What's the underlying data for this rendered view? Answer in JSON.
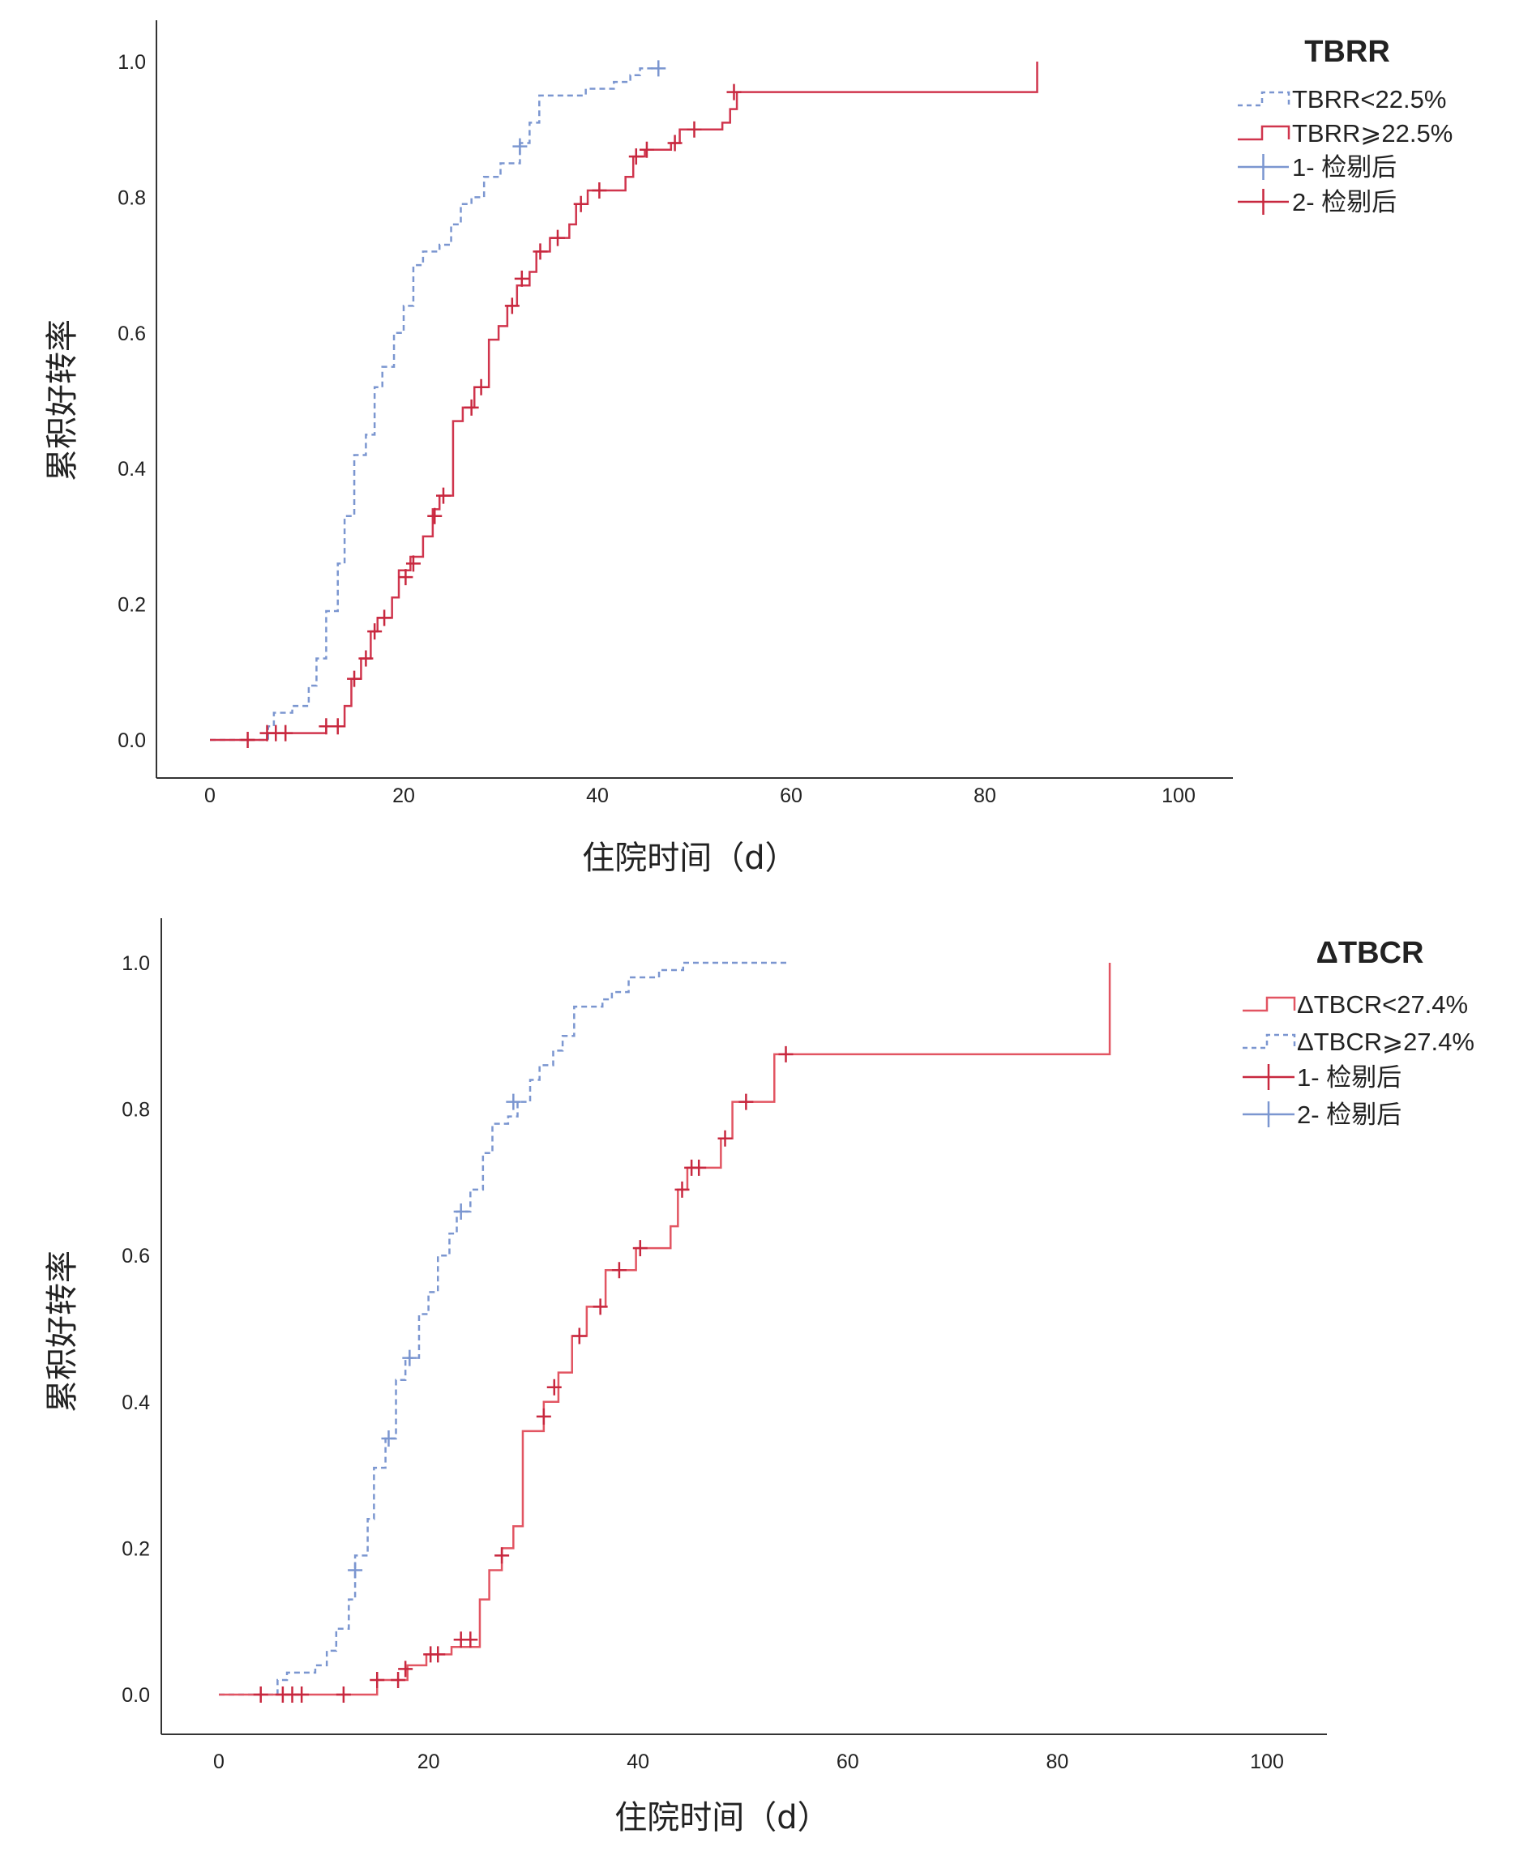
{
  "colors": {
    "blue": "#7b96d0",
    "red_top": "#d0354d",
    "red_bottom": "#e25562",
    "red_censor": "#c8283f",
    "axis": "#333333"
  },
  "chart_data": [
    {
      "type": "line",
      "subtype": "kaplan-meier-cumulative",
      "legend_title": "TBRR",
      "xlabel": "住院时间（d）",
      "ylabel": "累积好转率",
      "xlim": [
        0,
        100
      ],
      "ylim": [
        0,
        1.0
      ],
      "xticks": [
        "0",
        "20",
        "40",
        "60",
        "80",
        "100"
      ],
      "yticks": [
        "0.0",
        "0.2",
        "0.4",
        "0.6",
        "0.8",
        "1.0"
      ],
      "legend_position": "top-right",
      "legend": [
        {
          "label": "TBRR<22.5%",
          "style": "dashed-step",
          "color": "blue"
        },
        {
          "label": "TBRR⩾22.5%",
          "style": "solid-step",
          "color": "red"
        },
        {
          "label": "1- 检剔后",
          "style": "censor",
          "color": "blue"
        },
        {
          "label": "2- 检剔后",
          "style": "censor",
          "color": "red"
        }
      ],
      "series": [
        {
          "name": "TBRR<22.5%",
          "color": "blue",
          "dashed": true,
          "steps": [
            [
              0,
              0
            ],
            [
              6,
              0.02
            ],
            [
              6.6,
              0.04
            ],
            [
              8.5,
              0.05
            ],
            [
              10.2,
              0.08
            ],
            [
              11,
              0.12
            ],
            [
              12,
              0.19
            ],
            [
              13.2,
              0.26
            ],
            [
              13.9,
              0.33
            ],
            [
              14.9,
              0.42
            ],
            [
              16.1,
              0.45
            ],
            [
              17,
              0.52
            ],
            [
              17.8,
              0.55
            ],
            [
              19,
              0.6
            ],
            [
              20,
              0.64
            ],
            [
              21,
              0.7
            ],
            [
              22,
              0.72
            ],
            [
              23.7,
              0.73
            ],
            [
              24.9,
              0.76
            ],
            [
              25.9,
              0.79
            ],
            [
              27,
              0.8
            ],
            [
              28.3,
              0.83
            ],
            [
              30,
              0.85
            ],
            [
              32,
              0.88
            ],
            [
              33,
              0.91
            ],
            [
              34,
              0.95
            ],
            [
              38.8,
              0.96
            ],
            [
              41.7,
              0.97
            ],
            [
              43.4,
              0.98
            ],
            [
              44.4,
              0.99
            ]
          ],
          "end": 46.3,
          "censored": [
            [
              32,
              0.875
            ],
            [
              46.3,
              0.99
            ]
          ]
        },
        {
          "name": "TBRR⩾22.5%",
          "color": "red",
          "dashed": false,
          "steps": [
            [
              0,
              0
            ],
            [
              5.9,
              0.01
            ],
            [
              12,
              0.02
            ],
            [
              13.9,
              0.05
            ],
            [
              14.6,
              0.09
            ],
            [
              15.6,
              0.12
            ],
            [
              16.6,
              0.16
            ],
            [
              17.3,
              0.18
            ],
            [
              18.8,
              0.21
            ],
            [
              19.5,
              0.25
            ],
            [
              20.7,
              0.27
            ],
            [
              22,
              0.3
            ],
            [
              23,
              0.34
            ],
            [
              23.7,
              0.36
            ],
            [
              25.1,
              0.47
            ],
            [
              26.1,
              0.49
            ],
            [
              27.3,
              0.52
            ],
            [
              28.8,
              0.59
            ],
            [
              29.8,
              0.61
            ],
            [
              30.7,
              0.64
            ],
            [
              31.7,
              0.67
            ],
            [
              33,
              0.69
            ],
            [
              33.7,
              0.72
            ],
            [
              35.1,
              0.74
            ],
            [
              37.1,
              0.76
            ],
            [
              37.8,
              0.79
            ],
            [
              39,
              0.81
            ],
            [
              42.9,
              0.83
            ],
            [
              43.7,
              0.86
            ],
            [
              44.9,
              0.87
            ],
            [
              47.6,
              0.88
            ],
            [
              48.5,
              0.9
            ],
            [
              52.9,
              0.91
            ],
            [
              53.7,
              0.93
            ],
            [
              54.4,
              0.955
            ],
            [
              85.4,
              1.0
            ]
          ],
          "end": 85.4,
          "censored": [
            [
              3.9,
              0
            ],
            [
              5.9,
              0.01
            ],
            [
              6.8,
              0.01
            ],
            [
              7.8,
              0.01
            ],
            [
              12,
              0.02
            ],
            [
              13.2,
              0.02
            ],
            [
              14.9,
              0.09
            ],
            [
              16.1,
              0.12
            ],
            [
              17,
              0.16
            ],
            [
              18,
              0.18
            ],
            [
              20.2,
              0.24
            ],
            [
              21,
              0.26
            ],
            [
              23.2,
              0.33
            ],
            [
              24.1,
              0.36
            ],
            [
              27,
              0.49
            ],
            [
              28,
              0.52
            ],
            [
              31.2,
              0.64
            ],
            [
              32.2,
              0.68
            ],
            [
              34.1,
              0.72
            ],
            [
              35.9,
              0.74
            ],
            [
              38.3,
              0.79
            ],
            [
              40.2,
              0.81
            ],
            [
              44,
              0.86
            ],
            [
              45.1,
              0.87
            ],
            [
              48,
              0.88
            ],
            [
              50,
              0.9
            ],
            [
              54.1,
              0.955
            ]
          ]
        }
      ]
    },
    {
      "type": "line",
      "subtype": "kaplan-meier-cumulative",
      "legend_title": "ΔTBCR",
      "xlabel": "住院时间（d）",
      "ylabel": "累积好转率",
      "xlim": [
        0,
        100
      ],
      "ylim": [
        0,
        1.0
      ],
      "xticks": [
        "0",
        "20",
        "40",
        "60",
        "80",
        "100"
      ],
      "yticks": [
        "0.0",
        "0.2",
        "0.4",
        "0.6",
        "0.8",
        "1.0"
      ],
      "legend_position": "top-right",
      "legend": [
        {
          "label": "ΔTBCR<27.4%",
          "style": "solid-step",
          "color": "red"
        },
        {
          "label": "ΔTBCR⩾27.4%",
          "style": "dashed-step",
          "color": "blue"
        },
        {
          "label": "1- 检剔后",
          "style": "censor",
          "color": "red"
        },
        {
          "label": "2- 检剔后",
          "style": "censor",
          "color": "blue"
        }
      ],
      "series": [
        {
          "name": "ΔTBCR⩾27.4%",
          "color": "blue",
          "dashed": true,
          "steps": [
            [
              0,
              0
            ],
            [
              5.6,
              0.02
            ],
            [
              6.5,
              0.03
            ],
            [
              9.2,
              0.04
            ],
            [
              10.3,
              0.06
            ],
            [
              11.2,
              0.09
            ],
            [
              12.4,
              0.13
            ],
            [
              13,
              0.19
            ],
            [
              14.2,
              0.24
            ],
            [
              14.8,
              0.31
            ],
            [
              15.9,
              0.35
            ],
            [
              16.9,
              0.43
            ],
            [
              17.8,
              0.46
            ],
            [
              19.1,
              0.52
            ],
            [
              20,
              0.55
            ],
            [
              20.9,
              0.6
            ],
            [
              22,
              0.63
            ],
            [
              22.7,
              0.66
            ],
            [
              24,
              0.69
            ],
            [
              25.2,
              0.74
            ],
            [
              26.1,
              0.78
            ],
            [
              27.6,
              0.79
            ],
            [
              28.5,
              0.81
            ],
            [
              29.7,
              0.84
            ],
            [
              30.6,
              0.86
            ],
            [
              31.9,
              0.88
            ],
            [
              32.8,
              0.9
            ],
            [
              33.9,
              0.94
            ],
            [
              36.6,
              0.95
            ],
            [
              37.5,
              0.96
            ],
            [
              39.1,
              0.98
            ],
            [
              42,
              0.99
            ],
            [
              44.3,
              1.0
            ]
          ],
          "end": 54.2,
          "censored": [
            [
              13,
              0.17
            ],
            [
              16.2,
              0.35
            ],
            [
              18.2,
              0.46
            ],
            [
              23.1,
              0.66
            ],
            [
              28.1,
              0.81
            ]
          ]
        },
        {
          "name": "ΔTBCR<27.4%",
          "color": "red",
          "dashed": false,
          "steps": [
            [
              0,
              0
            ],
            [
              15.1,
              0.02
            ],
            [
              18,
              0.04
            ],
            [
              19.8,
              0.055
            ],
            [
              22.2,
              0.065
            ],
            [
              24.9,
              0.13
            ],
            [
              25.8,
              0.17
            ],
            [
              27,
              0.2
            ],
            [
              28.1,
              0.23
            ],
            [
              29,
              0.36
            ],
            [
              31,
              0.4
            ],
            [
              32.4,
              0.44
            ],
            [
              33.7,
              0.49
            ],
            [
              35.1,
              0.53
            ],
            [
              36.9,
              0.58
            ],
            [
              39.8,
              0.61
            ],
            [
              43.1,
              0.64
            ],
            [
              43.8,
              0.69
            ],
            [
              44.7,
              0.72
            ],
            [
              47.9,
              0.76
            ],
            [
              49,
              0.81
            ],
            [
              53,
              0.875
            ],
            [
              85,
              1.0
            ]
          ],
          "end": 85,
          "censored": [
            [
              4,
              0
            ],
            [
              6.1,
              0
            ],
            [
              7,
              0
            ],
            [
              7.9,
              0
            ],
            [
              11.9,
              0
            ],
            [
              15.1,
              0.02
            ],
            [
              17.1,
              0.02
            ],
            [
              17.8,
              0.035
            ],
            [
              20.2,
              0.055
            ],
            [
              20.9,
              0.055
            ],
            [
              23.1,
              0.075
            ],
            [
              24,
              0.075
            ],
            [
              27,
              0.19
            ],
            [
              31,
              0.38
            ],
            [
              32,
              0.42
            ],
            [
              34.4,
              0.49
            ],
            [
              36.4,
              0.53
            ],
            [
              38.2,
              0.58
            ],
            [
              40.2,
              0.61
            ],
            [
              44.2,
              0.69
            ],
            [
              45.1,
              0.72
            ],
            [
              45.8,
              0.72
            ],
            [
              48.3,
              0.76
            ],
            [
              50.3,
              0.81
            ],
            [
              54.1,
              0.875
            ]
          ]
        }
      ]
    }
  ]
}
